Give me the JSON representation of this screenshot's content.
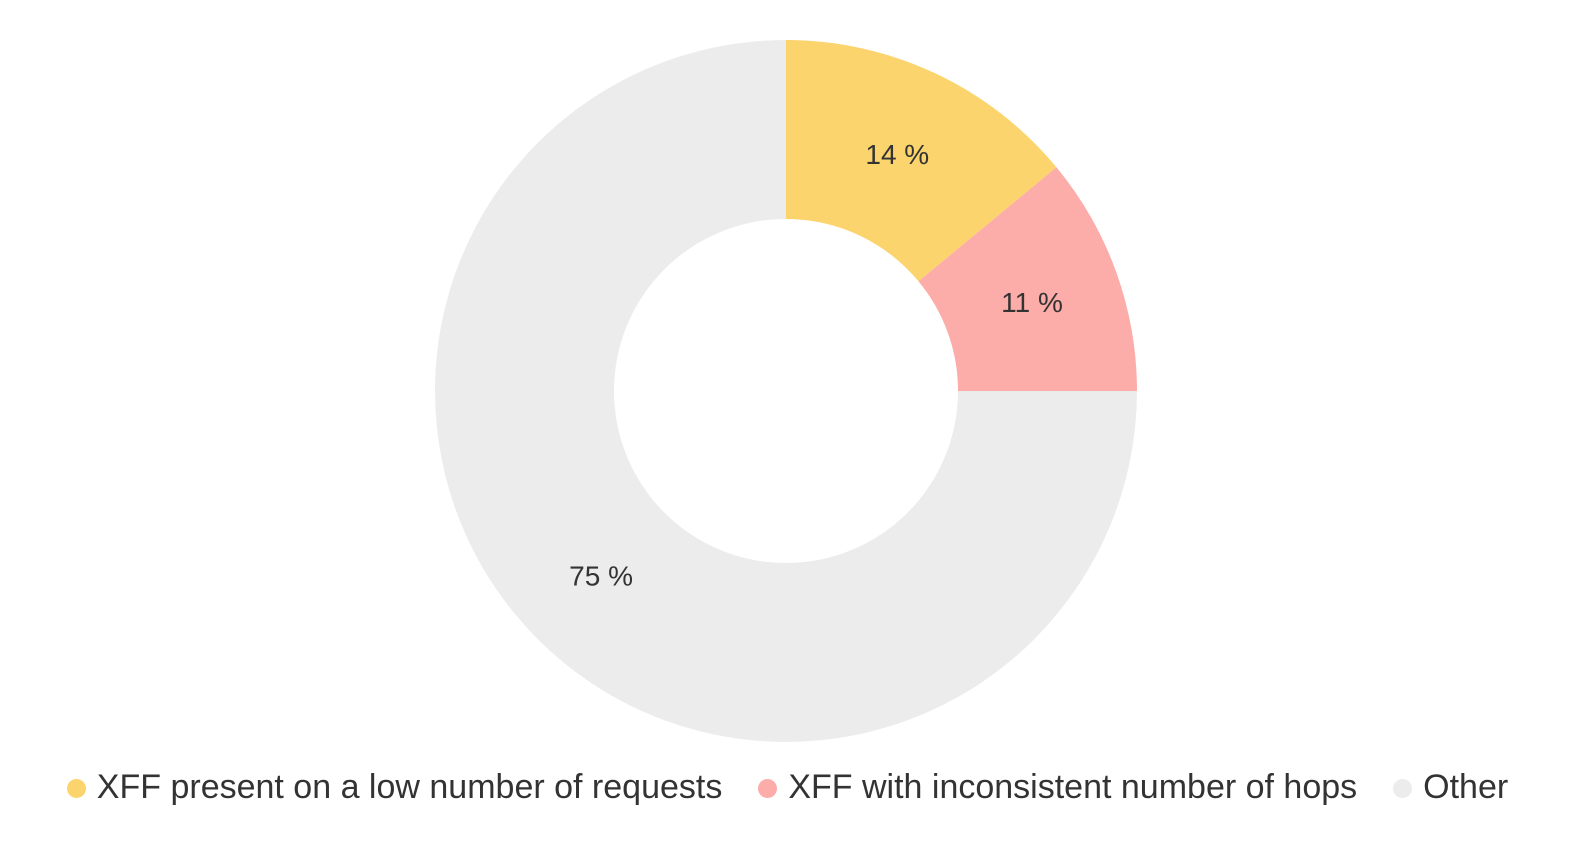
{
  "chart_data": {
    "type": "pie",
    "subtype": "donut",
    "title": "",
    "legend_position": "bottom",
    "background_color": "#FFFFFF",
    "label_color": "#333333",
    "start_angle_deg": 0,
    "direction": "clockwise",
    "inner_radius_ratio": 0.49,
    "slices": [
      {
        "id": "xff-low-requests",
        "label": "XFF present on a low number of requests",
        "value": 14,
        "display": "14 %",
        "color": "#FBD46D"
      },
      {
        "id": "xff-inconsistent-hops",
        "label": "XFF with inconsistent number of hops",
        "value": 11,
        "display": "11 %",
        "color": "#FCACA9"
      },
      {
        "id": "other",
        "label": "Other",
        "value": 75,
        "display": "75 %",
        "color": "#ECECEC"
      }
    ]
  }
}
